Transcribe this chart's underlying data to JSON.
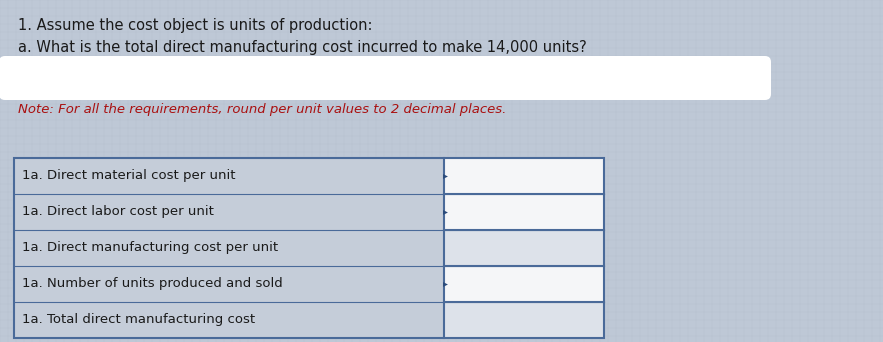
{
  "title_line1": "1. Assume the cost object is units of production:",
  "title_line2": "a. What is the total direct manufacturing cost incurred to make 14,000 units?",
  "note_text": "Note: For all the requirements, round per unit values to 2 decimal places.",
  "rows": [
    "1a. Direct material cost per unit",
    "1a. Direct labor cost per unit",
    "1a. Direct manufacturing cost per unit",
    "1a. Number of units produced and sold",
    "1a. Total direct manufacturing cost"
  ],
  "bg_color": "#bec8d6",
  "table_label_bg": "#c5cdd9",
  "table_input_bg": "#dde2ea",
  "white_cell_color": "#f5f6f8",
  "title_color": "#1a1a1a",
  "note_color": "#aa1111",
  "border_color": "#4a6a99",
  "title_fontsize": 10.5,
  "note_fontsize": 9.5,
  "row_fontsize": 9.5,
  "has_arrow_rows": [
    0,
    1,
    3
  ]
}
